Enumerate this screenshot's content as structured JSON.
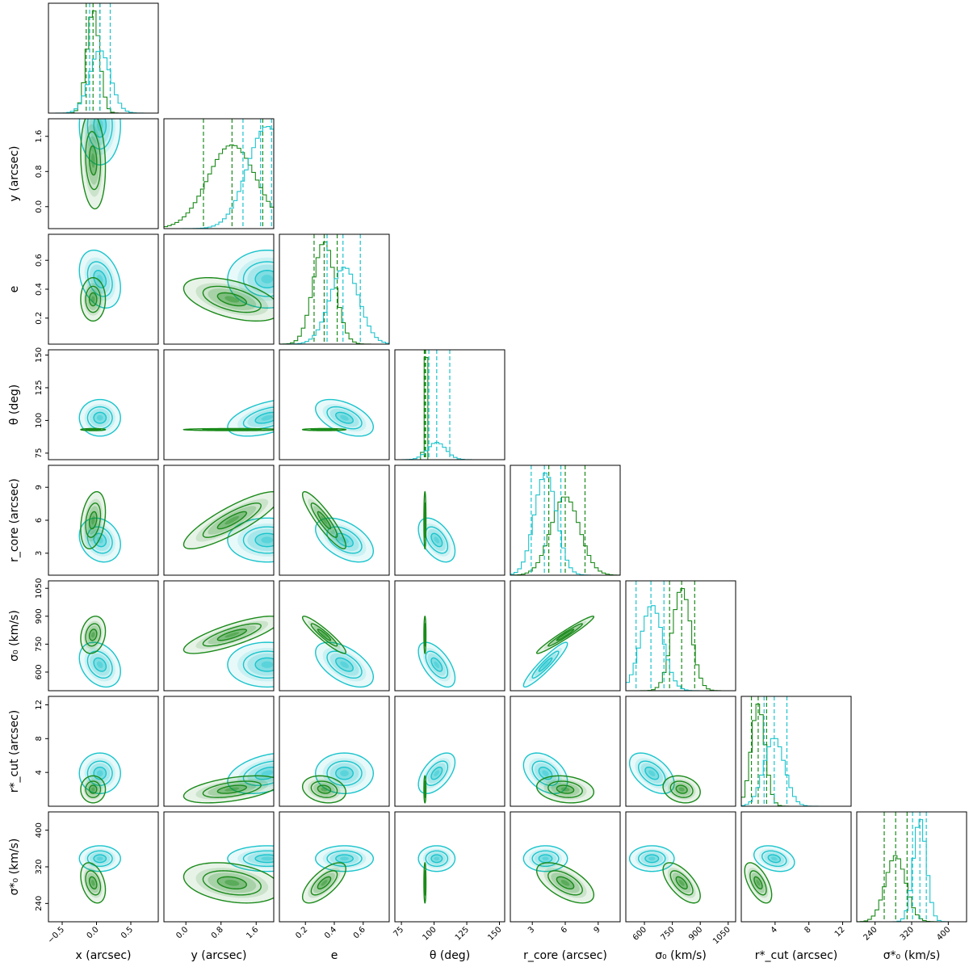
{
  "chart_data": {
    "type": "corner",
    "colors": {
      "model_a": "#1a8a1a",
      "model_b": "#1ac4cc"
    },
    "parameters": [
      {
        "key": "x",
        "label": "x (arcsec)",
        "range": [
          -0.7,
          0.9
        ],
        "ticks": [
          -0.5,
          0.0,
          0.5
        ],
        "tick_labels": [
          "−0.5",
          "0.0",
          "0.5"
        ]
      },
      {
        "key": "y",
        "label": "y (arcsec)",
        "range": [
          -0.5,
          2.0
        ],
        "ticks": [
          0.0,
          0.8,
          1.6
        ],
        "tick_labels": [
          "0.0",
          "0.8",
          "1.6"
        ]
      },
      {
        "key": "e",
        "label": "e",
        "range": [
          0.02,
          0.78
        ],
        "ticks": [
          0.2,
          0.4,
          0.6
        ],
        "tick_labels": [
          "0.2",
          "0.4",
          "0.6"
        ]
      },
      {
        "key": "theta",
        "label": "θ (deg)",
        "range": [
          70,
          154
        ],
        "ticks": [
          75,
          100,
          125,
          150
        ],
        "tick_labels": [
          "75",
          "100",
          "125",
          "150"
        ]
      },
      {
        "key": "rcore",
        "label": "r_core (arcsec)",
        "range": [
          1.0,
          11.0
        ],
        "ticks": [
          3,
          6,
          9
        ],
        "tick_labels": [
          "3",
          "6",
          "9"
        ]
      },
      {
        "key": "sigma0",
        "label": "σ₀ (km/s)",
        "range": [
          500,
          1090
        ],
        "ticks": [
          600,
          750,
          900,
          1050
        ],
        "tick_labels": [
          "600",
          "750",
          "900",
          "1050"
        ]
      },
      {
        "key": "rcut",
        "label": "r*_cut (arcsec)",
        "range": [
          0.0,
          13.0
        ],
        "ticks": [
          4,
          8,
          12
        ],
        "tick_labels": [
          "4",
          "8",
          "12"
        ]
      },
      {
        "key": "sigma0star",
        "label": "σ*₀ (km/s)",
        "range": [
          200,
          440
        ],
        "ticks": [
          240,
          320,
          400
        ],
        "tick_labels": [
          "240",
          "320",
          "400"
        ]
      }
    ],
    "series": [
      {
        "color": "#1a8a1a",
        "mean": [
          -0.05,
          1.05,
          0.33,
          93.0,
          6.0,
          800,
          2.0,
          285
        ],
        "std": [
          0.09,
          0.55,
          0.075,
          0.4,
          1.3,
          50,
          0.8,
          22
        ],
        "quantiles": [
          [
            -0.15,
            -0.05,
            0.05
          ],
          [
            0.4,
            1.05,
            1.75
          ],
          [
            0.26,
            0.33,
            0.42
          ],
          [
            92.5,
            93.0,
            93.5
          ],
          [
            4.5,
            6.0,
            7.8
          ],
          [
            735,
            800,
            870
          ],
          [
            1.2,
            2.0,
            3.0
          ],
          [
            260,
            285,
            310
          ]
        ],
        "correlations": [
          {
            "i": 0,
            "j": 1,
            "rho": -0.15
          },
          {
            "i": 0,
            "j": 4,
            "rho": 0.3
          },
          {
            "i": 0,
            "j": 5,
            "rho": 0.2
          },
          {
            "i": 0,
            "j": 7,
            "rho": -0.35
          },
          {
            "i": 1,
            "j": 2,
            "rho": -0.5
          },
          {
            "i": 1,
            "j": 4,
            "rho": 0.85
          },
          {
            "i": 1,
            "j": 5,
            "rho": 0.8
          },
          {
            "i": 1,
            "j": 6,
            "rho": 0.5
          },
          {
            "i": 1,
            "j": 7,
            "rho": -0.3
          },
          {
            "i": 2,
            "j": 4,
            "rho": -0.9
          },
          {
            "i": 2,
            "j": 5,
            "rho": -0.93
          },
          {
            "i": 2,
            "j": 6,
            "rho": -0.2
          },
          {
            "i": 2,
            "j": 7,
            "rho": 0.7
          },
          {
            "i": 4,
            "j": 5,
            "rho": 0.97
          },
          {
            "i": 4,
            "j": 6,
            "rho": -0.2
          },
          {
            "i": 4,
            "j": 7,
            "rho": -0.6
          },
          {
            "i": 5,
            "j": 6,
            "rho": -0.2
          },
          {
            "i": 5,
            "j": 7,
            "rho": -0.65
          },
          {
            "i": 6,
            "j": 7,
            "rho": -0.6
          }
        ]
      },
      {
        "color": "#1ac4cc",
        "mean": [
          0.05,
          1.85,
          0.47,
          102.0,
          4.2,
          640,
          3.9,
          338
        ],
        "std": [
          0.15,
          0.45,
          0.1,
          7.0,
          1.0,
          60,
          1.2,
          14
        ],
        "quantiles": [
          [
            -0.1,
            0.05,
            0.2
          ],
          [
            1.3,
            1.7,
            1.95
          ],
          [
            0.35,
            0.46,
            0.58
          ],
          [
            96.0,
            102.0,
            112.0
          ],
          [
            2.9,
            4.1,
            5.6
          ],
          [
            555,
            635,
            705
          ],
          [
            2.7,
            3.9,
            5.4
          ],
          [
            322,
            338,
            352
          ]
        ],
        "correlations": [
          {
            "i": 0,
            "j": 2,
            "rho": -0.3
          },
          {
            "i": 0,
            "j": 4,
            "rho": -0.2
          },
          {
            "i": 0,
            "j": 5,
            "rho": -0.3
          },
          {
            "i": 1,
            "j": 3,
            "rho": 0.5
          },
          {
            "i": 1,
            "j": 6,
            "rho": 0.4
          },
          {
            "i": 2,
            "j": 3,
            "rho": -0.5
          },
          {
            "i": 2,
            "j": 4,
            "rho": -0.5
          },
          {
            "i": 2,
            "j": 5,
            "rho": -0.55
          },
          {
            "i": 3,
            "j": 4,
            "rho": -0.5
          },
          {
            "i": 3,
            "j": 5,
            "rho": -0.6
          },
          {
            "i": 3,
            "j": 6,
            "rho": 0.55
          },
          {
            "i": 4,
            "j": 5,
            "rho": 0.93
          },
          {
            "i": 4,
            "j": 6,
            "rho": -0.4
          },
          {
            "i": 5,
            "j": 6,
            "rho": -0.5
          },
          {
            "i": 6,
            "j": 7,
            "rho": -0.3
          }
        ]
      }
    ]
  }
}
